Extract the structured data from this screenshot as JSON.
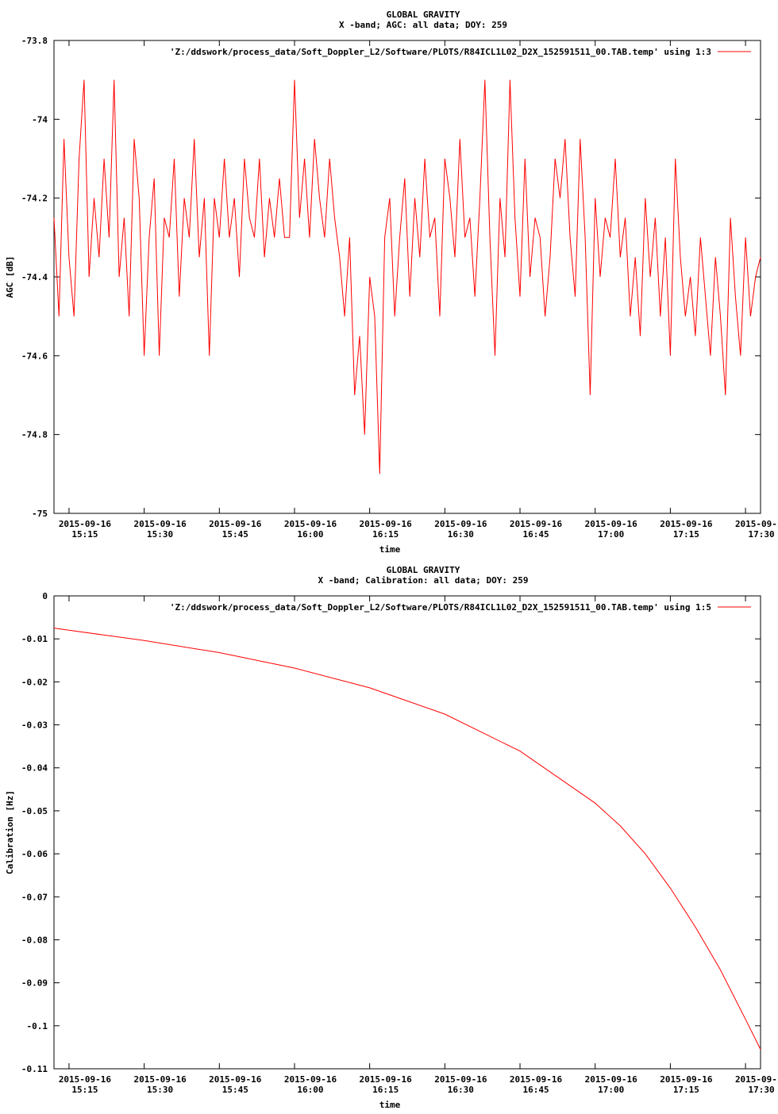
{
  "chart_data": [
    {
      "type": "line",
      "title": "GLOBAL GRAVITY",
      "subtitle": "X -band; AGC: all data; DOY: 259",
      "xlabel": "time",
      "ylabel": "AGC [dB]",
      "x_date": "2015-09-16",
      "xlim": [
        "15:12",
        "17:33"
      ],
      "ylim": [
        -75,
        -73.8
      ],
      "x_ticks": [
        "15:15",
        "15:30",
        "15:45",
        "16:00",
        "16:15",
        "16:30",
        "16:45",
        "17:00",
        "17:15",
        "17:30"
      ],
      "y_ticks": [
        "-73.8",
        "-74",
        "-74.2",
        "-74.4",
        "-74.6",
        "-74.8",
        "-75"
      ],
      "y_tick_values": [
        -73.8,
        -74,
        -74.2,
        -74.4,
        -74.6,
        -74.8,
        -75
      ],
      "legend": "'Z:/ddswork/process_data/Soft_Doppler_L2/Software/PLOTS/R84ICL1L02_D2X_152591511_00.TAB.temp' using 1:3",
      "legend_position": "top-right",
      "grid": false,
      "color": "#ff0000",
      "x": [
        "15:12",
        "15:13",
        "15:14",
        "15:15",
        "15:16",
        "15:17",
        "15:18",
        "15:19",
        "15:20",
        "15:21",
        "15:22",
        "15:23",
        "15:24",
        "15:25",
        "15:26",
        "15:27",
        "15:28",
        "15:29",
        "15:30",
        "15:31",
        "15:32",
        "15:33",
        "15:34",
        "15:35",
        "15:36",
        "15:37",
        "15:38",
        "15:39",
        "15:40",
        "15:41",
        "15:42",
        "15:43",
        "15:44",
        "15:45",
        "15:46",
        "15:47",
        "15:48",
        "15:49",
        "15:50",
        "15:51",
        "15:52",
        "15:53",
        "15:54",
        "15:55",
        "15:56",
        "15:57",
        "15:58",
        "15:59",
        "16:00",
        "16:01",
        "16:02",
        "16:03",
        "16:04",
        "16:05",
        "16:06",
        "16:07",
        "16:08",
        "16:09",
        "16:10",
        "16:11",
        "16:12",
        "16:13",
        "16:14",
        "16:15",
        "16:16",
        "16:17",
        "16:18",
        "16:19",
        "16:20",
        "16:21",
        "16:22",
        "16:23",
        "16:24",
        "16:25",
        "16:26",
        "16:27",
        "16:28",
        "16:29",
        "16:30",
        "16:31",
        "16:32",
        "16:33",
        "16:34",
        "16:35",
        "16:36",
        "16:37",
        "16:38",
        "16:39",
        "16:40",
        "16:41",
        "16:42",
        "16:43",
        "16:44",
        "16:45",
        "16:46",
        "16:47",
        "16:48",
        "16:49",
        "16:50",
        "16:51",
        "16:52",
        "16:53",
        "16:54",
        "16:55",
        "16:56",
        "16:57",
        "16:58",
        "16:59",
        "17:00",
        "17:01",
        "17:02",
        "17:03",
        "17:04",
        "17:05",
        "17:06",
        "17:07",
        "17:08",
        "17:09",
        "17:10",
        "17:11",
        "17:12",
        "17:13",
        "17:14",
        "17:15",
        "17:16",
        "17:17",
        "17:18",
        "17:19",
        "17:20",
        "17:21",
        "17:22",
        "17:23",
        "17:24",
        "17:25",
        "17:26",
        "17:27",
        "17:28",
        "17:29",
        "17:30",
        "17:31",
        "17:32",
        "17:33"
      ],
      "y": [
        -74.25,
        -74.5,
        -74.05,
        -74.35,
        -74.5,
        -74.1,
        -73.9,
        -74.4,
        -74.2,
        -74.35,
        -74.1,
        -74.3,
        -73.9,
        -74.4,
        -74.25,
        -74.5,
        -74.05,
        -74.2,
        -74.6,
        -74.3,
        -74.15,
        -74.6,
        -74.25,
        -74.3,
        -74.1,
        -74.45,
        -74.2,
        -74.3,
        -74.05,
        -74.35,
        -74.2,
        -74.6,
        -74.2,
        -74.3,
        -74.1,
        -74.3,
        -74.2,
        -74.4,
        -74.1,
        -74.25,
        -74.3,
        -74.1,
        -74.35,
        -74.2,
        -74.3,
        -74.15,
        -74.3,
        -74.3,
        -73.9,
        -74.25,
        -74.1,
        -74.3,
        -74.05,
        -74.2,
        -74.3,
        -74.1,
        -74.25,
        -74.35,
        -74.5,
        -74.3,
        -74.7,
        -74.55,
        -74.8,
        -74.4,
        -74.5,
        -74.9,
        -74.3,
        -74.2,
        -74.5,
        -74.3,
        -74.15,
        -74.45,
        -74.2,
        -74.35,
        -74.1,
        -74.3,
        -74.25,
        -74.5,
        -74.1,
        -74.2,
        -74.35,
        -74.05,
        -74.3,
        -74.25,
        -74.45,
        -74.2,
        -73.9,
        -74.3,
        -74.6,
        -74.2,
        -74.35,
        -73.9,
        -74.25,
        -74.45,
        -74.1,
        -74.4,
        -74.25,
        -74.3,
        -74.5,
        -74.35,
        -74.1,
        -74.2,
        -74.05,
        -74.3,
        -74.45,
        -74.05,
        -74.3,
        -74.7,
        -74.2,
        -74.4,
        -74.25,
        -74.3,
        -74.1,
        -74.35,
        -74.25,
        -74.5,
        -74.35,
        -74.55,
        -74.2,
        -74.4,
        -74.25,
        -74.5,
        -74.3,
        -74.6,
        -74.1,
        -74.35,
        -74.5,
        -74.4,
        -74.55,
        -74.3,
        -74.45,
        -74.6,
        -74.35,
        -74.5,
        -74.7,
        -74.25,
        -74.45,
        -74.6,
        -74.3,
        -74.5,
        -74.4,
        -74.35
      ]
    },
    {
      "type": "line",
      "title": "GLOBAL GRAVITY",
      "subtitle": "X -band; Calibration: all data; DOY: 259",
      "xlabel": "time",
      "ylabel": "Calibration [Hz]",
      "x_date": "2015-09-16",
      "xlim": [
        "15:12",
        "17:33"
      ],
      "ylim": [
        -0.11,
        0
      ],
      "x_ticks": [
        "15:15",
        "15:30",
        "15:45",
        "16:00",
        "16:15",
        "16:30",
        "16:45",
        "17:00",
        "17:15",
        "17:30"
      ],
      "y_ticks": [
        "0",
        "-0.01",
        "-0.02",
        "-0.03",
        "-0.04",
        "-0.05",
        "-0.06",
        "-0.07",
        "-0.08",
        "-0.09",
        "-0.1",
        "-0.11"
      ],
      "y_tick_values": [
        0,
        -0.01,
        -0.02,
        -0.03,
        -0.04,
        -0.05,
        -0.06,
        -0.07,
        -0.08,
        -0.09,
        -0.1,
        -0.11
      ],
      "legend": "'Z:/ddswork/process_data/Soft_Doppler_L2/Software/PLOTS/R84ICL1L02_D2X_152591511_00.TAB.temp' using 1:5",
      "legend_position": "top-right",
      "grid": false,
      "color": "#ff0000",
      "x": [
        "15:12",
        "15:15",
        "15:30",
        "15:45",
        "16:00",
        "16:15",
        "16:30",
        "16:45",
        "17:00",
        "17:05",
        "17:10",
        "17:15",
        "17:20",
        "17:25",
        "17:30",
        "17:33"
      ],
      "y": [
        -0.0075,
        -0.008,
        -0.0104,
        -0.0132,
        -0.0168,
        -0.0214,
        -0.0275,
        -0.0361,
        -0.0482,
        -0.0535,
        -0.06,
        -0.068,
        -0.077,
        -0.087,
        -0.0985,
        -0.1055
      ]
    }
  ]
}
